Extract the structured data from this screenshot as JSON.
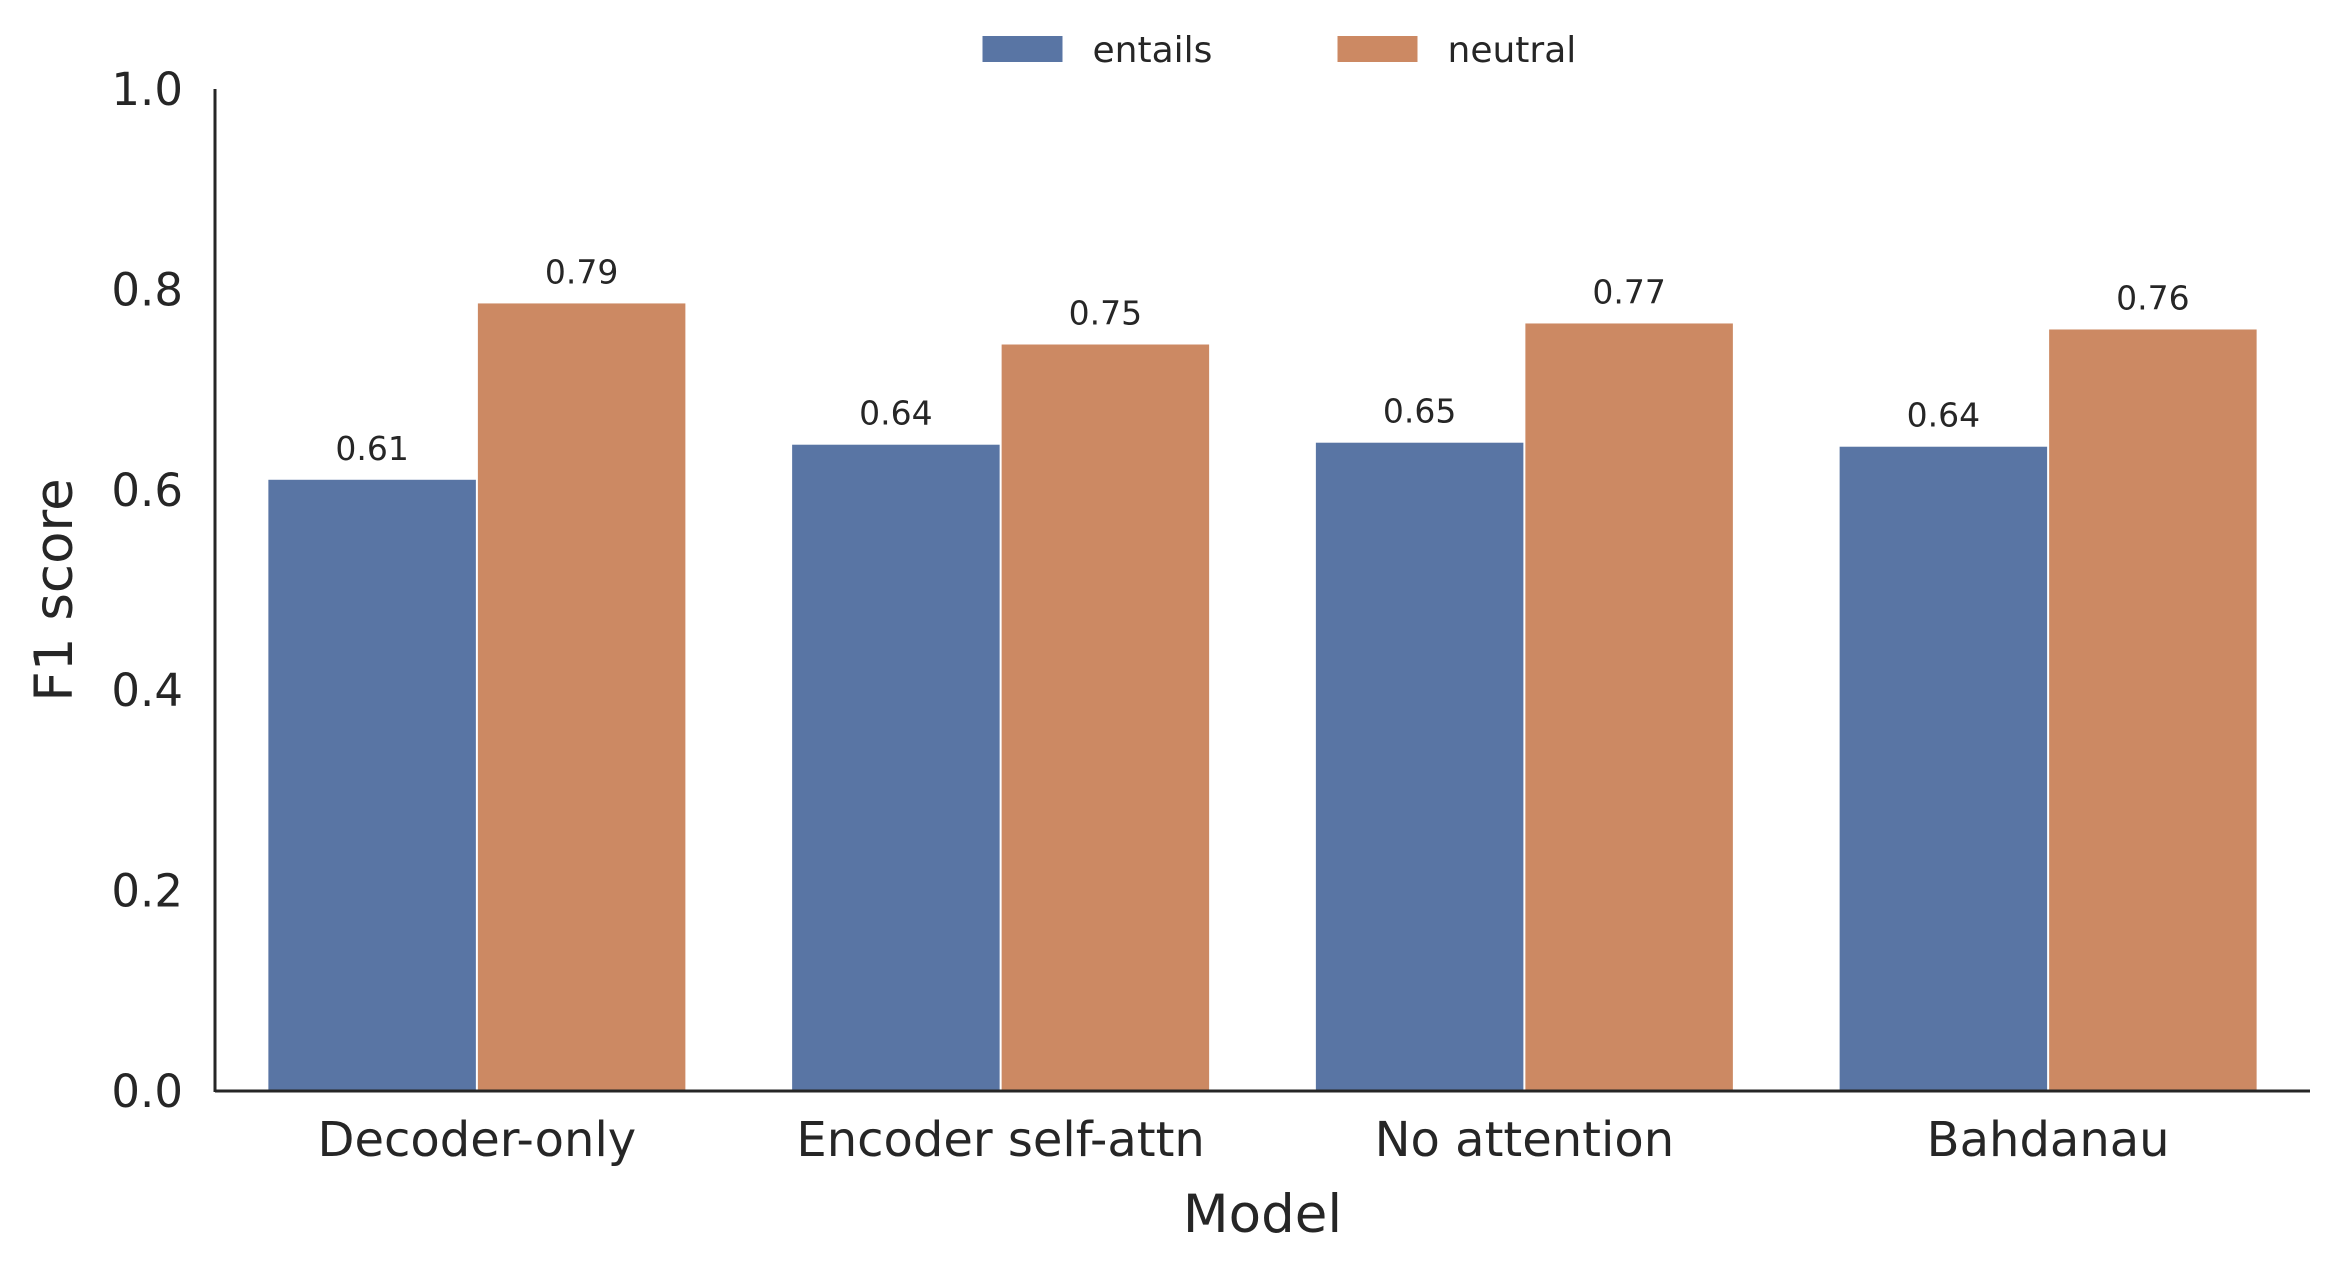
{
  "chart_data": {
    "type": "bar",
    "title": "",
    "xlabel": "Model",
    "ylabel": "F1 score",
    "ylim": [
      0,
      1.0
    ],
    "yticks": [
      "0.0",
      "0.2",
      "0.4",
      "0.6",
      "0.8",
      "1.0"
    ],
    "categories": [
      "Decoder-only",
      "Encoder self-attn",
      "No attention",
      "Bahdanau"
    ],
    "series": [
      {
        "name": "entails",
        "color": "#5975A4",
        "values": [
          0.61,
          0.645,
          0.647,
          0.643
        ],
        "labels": [
          "0.61",
          "0.64",
          "0.65",
          "0.64"
        ]
      },
      {
        "name": "neutral",
        "color": "#CC8963",
        "values": [
          0.786,
          0.745,
          0.766,
          0.76
        ],
        "labels": [
          "0.79",
          "0.75",
          "0.77",
          "0.76"
        ]
      }
    ],
    "legend": {
      "placement": "top-center",
      "columns": 2
    },
    "grid": false
  }
}
